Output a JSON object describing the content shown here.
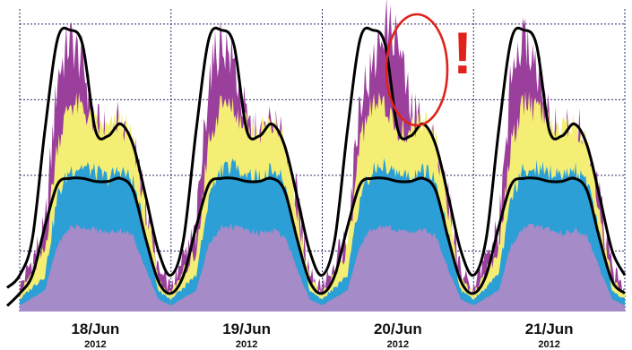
{
  "colors": {
    "violet": "#a58bc8",
    "blue": "#2b9fd6",
    "yellow": "#f4ef74",
    "magenta": "#9b3f9c",
    "envelope": "#000000",
    "annotation": "#e0221b",
    "grid": "#2a2a6a"
  },
  "annotation": {
    "mark": "!",
    "day_index": 2
  },
  "chart_data": {
    "type": "area",
    "x_ticks": [
      {
        "day": "18/Jun",
        "year": "2012"
      },
      {
        "day": "19/Jun",
        "year": "2012"
      },
      {
        "day": "20/Jun",
        "year": "2012"
      },
      {
        "day": "21/Jun",
        "year": "2012"
      }
    ],
    "xlim": [
      0,
      96
    ],
    "ylim": [
      0,
      100
    ],
    "grid": true,
    "legend": "none",
    "stack_order": [
      "violet",
      "blue",
      "yellow",
      "magenta"
    ],
    "series_profiles": {
      "x": [
        0,
        4,
        6,
        8,
        10,
        12,
        14,
        16,
        18,
        20,
        22,
        24
      ],
      "violet_top": [
        2,
        7,
        22,
        28,
        28,
        27,
        26,
        27,
        25,
        14,
        4,
        2
      ],
      "blue_top": [
        4,
        12,
        38,
        47,
        48,
        46,
        44,
        47,
        43,
        25,
        7,
        4
      ],
      "yellow_top": [
        6,
        20,
        56,
        69,
        67,
        61,
        60,
        63,
        56,
        33,
        10,
        6
      ],
      "magenta_top": [
        8,
        26,
        78,
        90,
        82,
        62,
        56,
        62,
        53,
        36,
        13,
        8
      ],
      "peak_day_magenta_top": [
        8,
        26,
        72,
        80,
        96,
        90,
        66,
        62,
        53,
        36,
        13,
        8
      ]
    },
    "envelope_upper": {
      "x": [
        0,
        2,
        4,
        6,
        8,
        10,
        12,
        14,
        16,
        18,
        20,
        22,
        24
      ],
      "y": [
        12,
        24,
        60,
        90,
        93,
        88,
        60,
        58,
        62,
        55,
        38,
        20,
        12
      ]
    },
    "envelope_lower": {
      "x": [
        0,
        2,
        4,
        6,
        8,
        10,
        12,
        14,
        16,
        18,
        20,
        22,
        24
      ],
      "y": [
        6,
        12,
        28,
        42,
        44,
        44,
        43,
        43,
        44,
        40,
        24,
        10,
        6
      ]
    }
  }
}
